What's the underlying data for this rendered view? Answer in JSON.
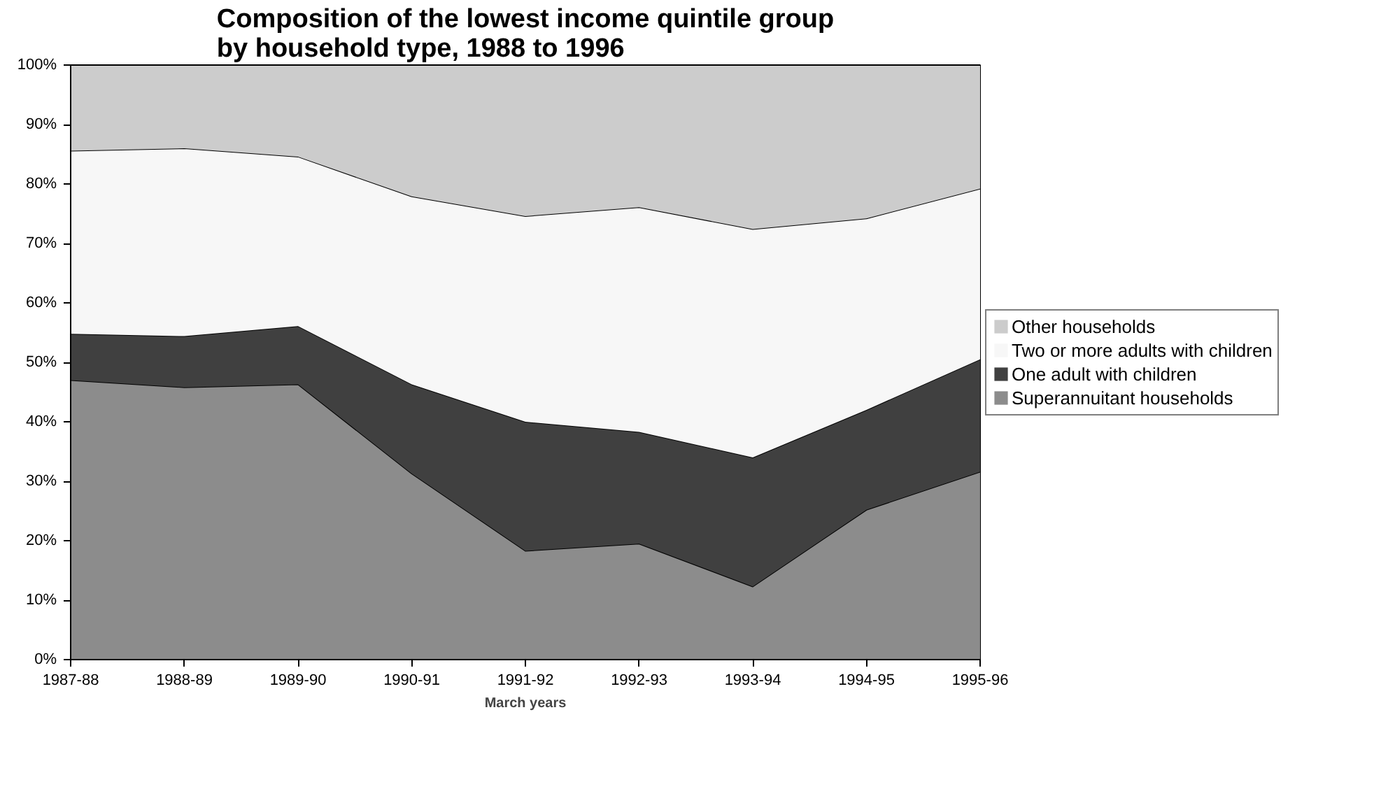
{
  "chart_data": {
    "type": "area",
    "stacked": true,
    "title": "Composition of the lowest income quintile group\nby household type, 1988 to 1996",
    "xlabel": "March years",
    "categories": [
      "1987-88",
      "1988-89",
      "1989-90",
      "1990-91",
      "1991-92",
      "1992-93",
      "1993-94",
      "1994-95",
      "1995-96"
    ],
    "series": [
      {
        "name": "Superannuitant households",
        "color": "#8c8c8c",
        "values": [
          47,
          45.8,
          46.3,
          31.3,
          18.3,
          19.5,
          12.3,
          25.2,
          31.6
        ]
      },
      {
        "name": "One adult with children",
        "color": "#404040",
        "values": [
          7.8,
          8.6,
          9.8,
          15,
          21.7,
          18.8,
          21.7,
          16.8,
          18.9
        ]
      },
      {
        "name": "Two or more adults with children",
        "color": "#f7f7f7",
        "values": [
          30.8,
          31.6,
          28.5,
          31.6,
          34.6,
          37.8,
          38.4,
          32.2,
          28.7
        ]
      },
      {
        "name": "Other households",
        "color": "#cccccc",
        "values": [
          14.4,
          14,
          15.4,
          22.1,
          25.4,
          23.9,
          27.6,
          25.8,
          20.8
        ]
      }
    ],
    "ylim": [
      0,
      100
    ],
    "yticks": [
      {
        "value": 0,
        "label": "0%"
      },
      {
        "value": 10,
        "label": "10%"
      },
      {
        "value": 20,
        "label": "20%"
      },
      {
        "value": 30,
        "label": "30%"
      },
      {
        "value": 40,
        "label": "40%"
      },
      {
        "value": 50,
        "label": "50%"
      },
      {
        "value": 60,
        "label": "60%"
      },
      {
        "value": 70,
        "label": "70%"
      },
      {
        "value": 80,
        "label": "80%"
      },
      {
        "value": 90,
        "label": "90%"
      },
      {
        "value": 100,
        "label": "100%"
      }
    ],
    "grid": false,
    "legend": "right"
  }
}
